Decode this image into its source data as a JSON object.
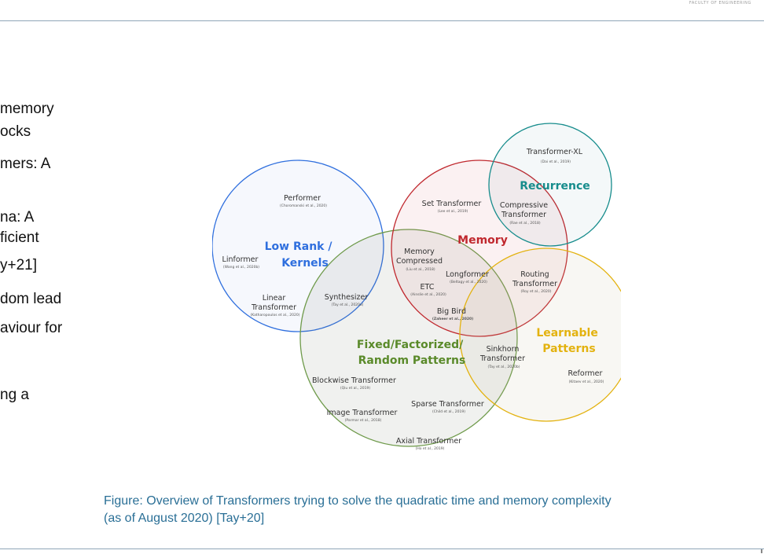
{
  "header": {
    "institution": "FACULTY OF ENGINEERING"
  },
  "body_text": [
    "memory",
    "ocks",
    "mers: A",
    "na: A",
    "ficient",
    "y+21]",
    "dom lead",
    "aviour for",
    "ng a"
  ],
  "diagram": {
    "groups": [
      {
        "label_lines": [
          "Low Rank /",
          "Kernels"
        ],
        "color": "#2f6fde"
      },
      {
        "label_lines": [
          "Memory"
        ],
        "color": "#c0282e"
      },
      {
        "label_lines": [
          "Recurrence"
        ],
        "color": "#168c8c"
      },
      {
        "label_lines": [
          "Learnable",
          "Patterns"
        ],
        "color": "#e3b20f"
      },
      {
        "label_lines": [
          "Fixed/Factorized/",
          "Random Patterns"
        ],
        "color": "#5a8a2a"
      }
    ],
    "models": [
      {
        "name_lines": [
          "Performer"
        ],
        "cite": "(Choromanski et al., 2020)"
      },
      {
        "name_lines": [
          "Linformer"
        ],
        "cite": "(Wang et al., 2020b)"
      },
      {
        "name_lines": [
          "Linear",
          "Transformer"
        ],
        "cite": "(Katharopoulos et al., 2020)"
      },
      {
        "name_lines": [
          "Synthesizer"
        ],
        "cite": "(Tay et al., 2020a)"
      },
      {
        "name_lines": [
          "Set Transformer"
        ],
        "cite": "(Lee et al., 2019)"
      },
      {
        "name_lines": [
          "Transformer-XL"
        ],
        "cite": "(Dai et al., 2019)"
      },
      {
        "name_lines": [
          "Compressive",
          "Transformer"
        ],
        "cite": "(Rae et al., 2018)"
      },
      {
        "name_lines": [
          "Memory",
          "Compressed"
        ],
        "cite": "(Liu et al., 2018)"
      },
      {
        "name_lines": [
          "Longformer"
        ],
        "cite": "(Beltagy et al., 2020)"
      },
      {
        "name_lines": [
          "ETC"
        ],
        "cite": "(Ainslie et al., 2020)"
      },
      {
        "name_lines": [
          "Big Bird"
        ],
        "cite": "(Zaheer et al., 2020)"
      },
      {
        "name_lines": [
          "Routing",
          "Transformer"
        ],
        "cite": "(Roy et al., 2020)"
      },
      {
        "name_lines": [
          "Sinkhorn",
          "Transformer"
        ],
        "cite": "(Tay et al., 2020b)"
      },
      {
        "name_lines": [
          "Reformer"
        ],
        "cite": "(Kitaev et al., 2020)"
      },
      {
        "name_lines": [
          "Blockwise Transformer"
        ],
        "cite": "(Qiu et al., 2019)"
      },
      {
        "name_lines": [
          "Sparse Transformer"
        ],
        "cite": "(Child et al., 2019)"
      },
      {
        "name_lines": [
          "Image Transformer"
        ],
        "cite": "(Parmar et al., 2018)"
      },
      {
        "name_lines": [
          "Axial Transformer"
        ],
        "cite": "(Ho et al., 2019)"
      }
    ]
  },
  "caption": {
    "line1": "Figure: Overview of Transformers trying to solve the quadratic time and memory complexity",
    "line2": "(as of August 2020) [Tay+20]"
  }
}
